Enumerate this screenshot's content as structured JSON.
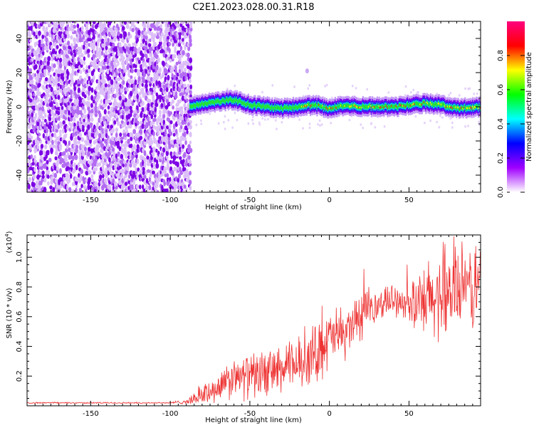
{
  "title": "C2E1.2023.028.00.31.R18",
  "chart_data": [
    {
      "type": "heatmap",
      "xlabel": "Height of straight line (km)",
      "ylabel": "Frequency (Hz)",
      "xlim": [
        -190,
        95
      ],
      "ylim": [
        -50,
        50
      ],
      "x_ticks": [
        -150,
        -100,
        -50,
        0,
        50
      ],
      "y_ticks": [
        -40,
        -20,
        0,
        20,
        40
      ],
      "colorbar": {
        "label": "Normalized spectral amplitude",
        "range": [
          0,
          1
        ],
        "ticks": [
          "0.0",
          "0.2",
          "0.4",
          "0.6",
          "0.8"
        ],
        "tick_values": [
          0.0,
          0.2,
          0.4,
          0.6,
          0.8
        ],
        "colors": [
          "#ffffff",
          "#a000ff",
          "#0000ff",
          "#00ffff",
          "#00ff00",
          "#ffff00",
          "#ff0000",
          "#ff0080"
        ]
      },
      "features": {
        "noise_region_x": [
          -190,
          -87
        ],
        "signal_track": {
          "x": [
            -88,
            -80,
            -70,
            -60,
            -50,
            -40,
            -30,
            -20,
            -10,
            0,
            10,
            20,
            30,
            40,
            50,
            60,
            70,
            80,
            95
          ],
          "y": [
            0,
            2,
            3,
            4,
            1,
            0,
            -1,
            0,
            1,
            -1,
            1,
            0,
            0,
            0,
            1,
            2,
            1,
            -1,
            0
          ]
        },
        "isolated_point": {
          "x": -14,
          "y": 21
        }
      }
    },
    {
      "type": "line",
      "xlabel": "Height of straight line (km)",
      "ylabel": "SNR (10 * v/v)",
      "y_multiplier": "(x10⁴)",
      "y_multiplier_base": "(x10",
      "y_multiplier_exp": "4",
      "y_multiplier_close": ")",
      "xlim": [
        -190,
        95
      ],
      "ylim": [
        0,
        1.15
      ],
      "x_ticks": [
        -150,
        -100,
        -50,
        0,
        50
      ],
      "y_ticks": [
        0.2,
        0.4,
        0.6,
        0.8,
        1.0
      ],
      "y_tick_labels": [
        "0.2",
        "0.4",
        "0.6",
        "0.8",
        "1.0"
      ],
      "series": [
        {
          "color": "#ee3333",
          "x": [
            -190,
            -100,
            -88,
            -80,
            -70,
            -60,
            -50,
            -40,
            -30,
            -20,
            -10,
            -5,
            0,
            10,
            20,
            30,
            40,
            50,
            55,
            60,
            70,
            80,
            90,
            95
          ],
          "y": [
            0.02,
            0.02,
            0.03,
            0.08,
            0.12,
            0.18,
            0.2,
            0.22,
            0.24,
            0.28,
            0.34,
            0.4,
            0.45,
            0.5,
            0.6,
            0.68,
            0.72,
            0.7,
            0.66,
            0.68,
            0.75,
            0.78,
            0.8,
            0.82
          ],
          "spread": [
            0.005,
            0.005,
            0.02,
            0.08,
            0.1,
            0.14,
            0.15,
            0.16,
            0.17,
            0.18,
            0.2,
            0.22,
            0.2,
            0.18,
            0.16,
            0.12,
            0.1,
            0.12,
            0.22,
            0.28,
            0.3,
            0.3,
            0.3,
            0.3
          ]
        }
      ]
    }
  ]
}
